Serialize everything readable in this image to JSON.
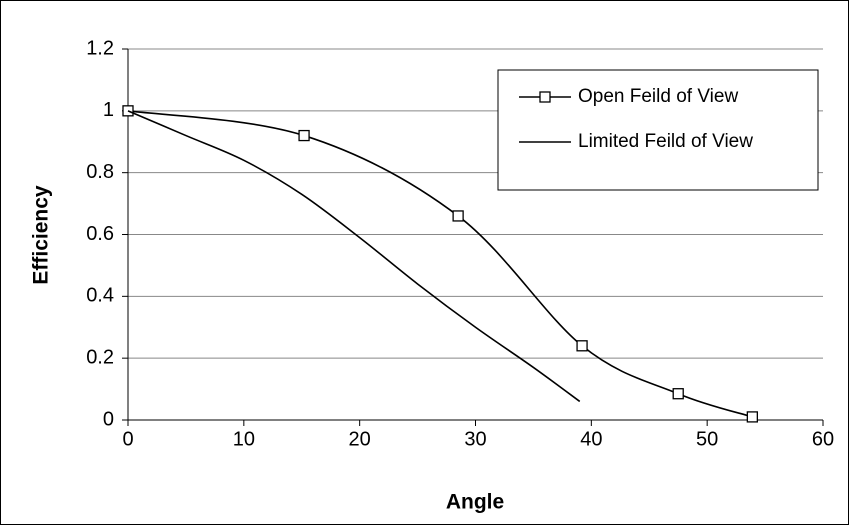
{
  "chart_data": {
    "type": "line",
    "xlabel": "Angle",
    "ylabel": "Efficiency",
    "xlim": [
      0,
      60
    ],
    "xticks": [
      0,
      10,
      20,
      30,
      40,
      50,
      60
    ],
    "ylim": [
      0,
      1.2
    ],
    "yticks": [
      0,
      0.2,
      0.4,
      0.6,
      0.8,
      1,
      1.2
    ],
    "grid": true,
    "legend": "upper right",
    "series": [
      {
        "name": "Open Feild of View",
        "color": "#000000",
        "marker": "square",
        "x": [
          0,
          15.2,
          28.5,
          39.2,
          47.5,
          53.9
        ],
        "values": [
          1,
          0.92,
          0.66,
          0.24,
          0.085,
          0.01
        ]
      },
      {
        "name": "Limited Feild of View",
        "color": "#000000",
        "marker": "none",
        "x": [
          0,
          5,
          10,
          15,
          20,
          25,
          30,
          35,
          39
        ],
        "values": [
          1,
          0.92,
          0.84,
          0.73,
          0.59,
          0.44,
          0.3,
          0.17,
          0.06
        ]
      }
    ]
  }
}
